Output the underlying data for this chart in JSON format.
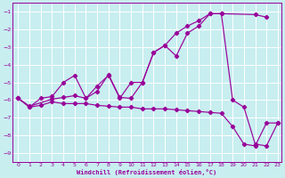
{
  "xlabel": "Windchill (Refroidissement éolien,°C)",
  "bg_color": "#c8eef0",
  "line_color": "#990099",
  "grid_color": "#ffffff",
  "xlim_min": -0.5,
  "xlim_max": 23.3,
  "ylim_min": -9.5,
  "ylim_max": -0.5,
  "yticks": [
    -9,
    -8,
    -7,
    -6,
    -5,
    -4,
    -3,
    -2,
    -1
  ],
  "xticks": [
    0,
    1,
    2,
    3,
    4,
    5,
    6,
    7,
    8,
    9,
    10,
    11,
    12,
    13,
    14,
    15,
    16,
    17,
    18,
    19,
    20,
    21,
    22,
    23
  ],
  "line1_x": [
    0,
    1,
    2,
    3,
    4,
    5,
    6,
    7,
    8,
    9,
    10,
    11,
    12,
    13,
    14,
    15,
    16,
    17,
    18,
    21,
    22
  ],
  "line1_y": [
    -5.9,
    -6.4,
    -5.9,
    -5.8,
    -5.0,
    -4.6,
    -5.9,
    -5.2,
    -4.6,
    -5.9,
    -5.0,
    -5.0,
    -3.3,
    -2.9,
    -3.5,
    -2.2,
    -1.8,
    -1.1,
    -1.1,
    -1.15,
    -1.3
  ],
  "line2_x": [
    0,
    1,
    2,
    3,
    4,
    5,
    6,
    7,
    8,
    9,
    10,
    11,
    12,
    13,
    14,
    15,
    16,
    17,
    18,
    19,
    20,
    21,
    22,
    23
  ],
  "line2_y": [
    -5.9,
    -6.4,
    -6.3,
    -6.1,
    -6.2,
    -6.2,
    -6.2,
    -6.3,
    -6.35,
    -6.4,
    -6.4,
    -6.5,
    -6.5,
    -6.5,
    -6.55,
    -6.6,
    -6.65,
    -6.7,
    -6.75,
    -7.5,
    -8.5,
    -8.6,
    -7.3,
    -7.3
  ],
  "line3_x": [
    0,
    1,
    3,
    4,
    5,
    6,
    7,
    8,
    9,
    10,
    11,
    12,
    13,
    14,
    15,
    16,
    17,
    18,
    19,
    20,
    21,
    22,
    23
  ],
  "line3_y": [
    -5.9,
    -6.35,
    -5.95,
    -5.85,
    -5.75,
    -5.9,
    -5.5,
    -4.55,
    -5.85,
    -5.9,
    -5.0,
    -3.3,
    -2.9,
    -2.2,
    -1.8,
    -1.5,
    -1.1,
    -1.1,
    -6.0,
    -6.4,
    -8.5,
    -8.6,
    -7.3
  ]
}
